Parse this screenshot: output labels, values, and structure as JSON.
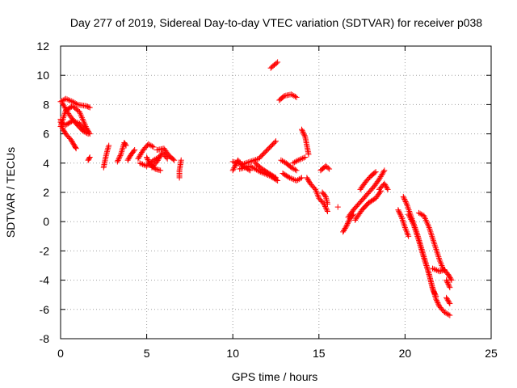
{
  "chart_data": {
    "type": "scatter",
    "title": "Day 277 of 2019, Sidereal Day-to-day VTEC variation (SDTVAR) for receiver p038",
    "xlabel": "GPS time / hours",
    "ylabel": "SDTVAR / TECUs",
    "xlim": [
      0,
      25
    ],
    "ylim": [
      -8,
      12
    ],
    "xticks": [
      0,
      5,
      10,
      15,
      20,
      25
    ],
    "yticks": [
      -8,
      -6,
      -4,
      -2,
      0,
      2,
      4,
      6,
      8,
      10,
      12
    ],
    "grid": true,
    "marker": "+",
    "marker_color": "#ff0000",
    "series": [
      {
        "name": "SDTVAR",
        "tracks": [
          [
            [
              0.0,
              6.5
            ],
            [
              0.3,
              7.6
            ],
            [
              0.7,
              7.9
            ],
            [
              1.1,
              7.5
            ],
            [
              1.5,
              6.4
            ],
            [
              1.7,
              6.0
            ]
          ],
          [
            [
              0.0,
              8.2
            ],
            [
              0.3,
              8.4
            ],
            [
              0.7,
              8.2
            ],
            [
              1.0,
              8.0
            ],
            [
              1.5,
              7.9
            ],
            [
              1.7,
              7.8
            ]
          ],
          [
            [
              0.0,
              7.0
            ],
            [
              0.1,
              6.4
            ],
            [
              0.3,
              6.0
            ],
            [
              0.6,
              5.6
            ],
            [
              0.8,
              5.2
            ],
            [
              0.9,
              5.0
            ]
          ],
          [
            [
              0.0,
              6.8
            ],
            [
              0.3,
              6.6
            ],
            [
              0.7,
              6.9
            ],
            [
              1.1,
              6.7
            ],
            [
              1.4,
              6.3
            ]
          ],
          [
            [
              0.1,
              8.1
            ],
            [
              0.5,
              7.3
            ],
            [
              0.9,
              6.7
            ],
            [
              1.3,
              6.2
            ],
            [
              1.6,
              6.0
            ]
          ],
          [
            [
              1.6,
              4.2
            ],
            [
              1.7,
              4.4
            ]
          ],
          [
            [
              2.5,
              3.7
            ],
            [
              2.6,
              4.3
            ],
            [
              2.7,
              4.8
            ],
            [
              2.8,
              5.2
            ]
          ],
          [
            [
              3.3,
              4.1
            ],
            [
              3.5,
              4.6
            ],
            [
              3.7,
              5.4
            ],
            [
              3.8,
              5.2
            ]
          ],
          [
            [
              3.9,
              4.2
            ],
            [
              4.1,
              4.6
            ],
            [
              4.3,
              4.9
            ]
          ],
          [
            [
              4.5,
              4.3
            ],
            [
              4.8,
              4.9
            ],
            [
              5.1,
              5.3
            ],
            [
              5.4,
              5.1
            ]
          ],
          [
            [
              4.6,
              4.0
            ],
            [
              5.0,
              3.8
            ],
            [
              5.4,
              4.2
            ],
            [
              5.7,
              4.4
            ]
          ],
          [
            [
              5.3,
              3.7
            ],
            [
              5.6,
              4.1
            ],
            [
              5.9,
              4.7
            ],
            [
              6.2,
              4.3
            ]
          ],
          [
            [
              5.6,
              4.9
            ],
            [
              6.0,
              5.0
            ],
            [
              6.3,
              4.5
            ],
            [
              6.6,
              4.2
            ]
          ],
          [
            [
              5.0,
              4.4
            ],
            [
              5.2,
              3.9
            ],
            [
              5.5,
              3.6
            ],
            [
              5.8,
              3.5
            ]
          ],
          [
            [
              6.9,
              3.0
            ],
            [
              6.9,
              3.5
            ],
            [
              7.0,
              4.2
            ]
          ],
          [
            [
              10.0,
              3.5
            ],
            [
              10.3,
              4.2
            ],
            [
              10.6,
              3.8
            ],
            [
              11.0,
              3.5
            ]
          ],
          [
            [
              10.0,
              4.1
            ],
            [
              10.5,
              3.9
            ],
            [
              11.0,
              4.1
            ],
            [
              11.5,
              4.3
            ],
            [
              12.0,
              4.9
            ],
            [
              12.5,
              5.5
            ]
          ],
          [
            [
              10.4,
              3.6
            ],
            [
              11.0,
              3.8
            ],
            [
              11.6,
              3.4
            ],
            [
              12.2,
              3.1
            ],
            [
              12.6,
              2.8
            ]
          ],
          [
            [
              11.3,
              4.0
            ],
            [
              11.7,
              3.6
            ],
            [
              12.1,
              3.3
            ],
            [
              12.5,
              3.0
            ]
          ],
          [
            [
              12.2,
              10.5
            ],
            [
              12.4,
              10.7
            ],
            [
              12.6,
              10.9
            ]
          ],
          [
            [
              12.7,
              8.3
            ],
            [
              13.0,
              8.6
            ],
            [
              13.4,
              8.7
            ],
            [
              13.7,
              8.5
            ]
          ],
          [
            [
              12.8,
              4.2
            ],
            [
              13.1,
              4.0
            ],
            [
              13.4,
              3.7
            ],
            [
              13.7,
              3.5
            ]
          ],
          [
            [
              13.5,
              4.0
            ],
            [
              13.8,
              4.2
            ],
            [
              14.2,
              4.4
            ]
          ],
          [
            [
              12.9,
              3.3
            ],
            [
              13.3,
              3.0
            ],
            [
              13.7,
              2.8
            ],
            [
              14.0,
              3.0
            ]
          ],
          [
            [
              14.0,
              6.3
            ],
            [
              14.2,
              5.8
            ],
            [
              14.3,
              5.2
            ],
            [
              14.4,
              4.6
            ]
          ],
          [
            [
              14.3,
              3.0
            ],
            [
              14.5,
              2.6
            ],
            [
              14.8,
              2.2
            ],
            [
              15.0,
              1.6
            ],
            [
              15.3,
              1.2
            ],
            [
              15.5,
              0.7
            ]
          ],
          [
            [
              15.1,
              3.5
            ],
            [
              15.4,
              3.8
            ],
            [
              15.6,
              3.6
            ]
          ],
          [
            [
              15.2,
              2.0
            ],
            [
              15.4,
              1.7
            ],
            [
              15.5,
              1.2
            ]
          ],
          [
            [
              16.1,
              1.0
            ]
          ],
          [
            [
              16.4,
              -0.7
            ],
            [
              16.6,
              -0.3
            ],
            [
              16.8,
              0.2
            ],
            [
              17.0,
              0.5
            ]
          ],
          [
            [
              16.7,
              0.3
            ],
            [
              17.0,
              0.8
            ],
            [
              17.3,
              1.2
            ],
            [
              17.6,
              1.6
            ],
            [
              17.9,
              2.0
            ],
            [
              18.2,
              2.4
            ],
            [
              18.5,
              2.9
            ],
            [
              18.8,
              3.5
            ]
          ],
          [
            [
              17.1,
              0.1
            ],
            [
              17.5,
              0.8
            ],
            [
              17.9,
              1.3
            ],
            [
              18.3,
              1.6
            ],
            [
              18.6,
              2.1
            ]
          ],
          [
            [
              17.4,
              2.2
            ],
            [
              17.7,
              2.7
            ],
            [
              18.0,
              3.1
            ],
            [
              18.3,
              3.4
            ]
          ],
          [
            [
              18.5,
              2.2
            ],
            [
              18.8,
              2.6
            ],
            [
              19.0,
              2.2
            ]
          ],
          [
            [
              19.6,
              0.8
            ],
            [
              19.8,
              0.3
            ],
            [
              20.0,
              -0.4
            ],
            [
              20.2,
              -1.0
            ]
          ],
          [
            [
              19.9,
              1.7
            ],
            [
              20.1,
              1.2
            ],
            [
              20.4,
              0.2
            ],
            [
              20.7,
              -0.8
            ],
            [
              21.0,
              -2.0
            ],
            [
              21.3,
              -3.2
            ],
            [
              21.6,
              -4.5
            ],
            [
              21.8,
              -5.3
            ],
            [
              22.0,
              -5.8
            ],
            [
              22.3,
              -6.2
            ],
            [
              22.6,
              -6.4
            ]
          ],
          [
            [
              20.2,
              0.5
            ],
            [
              20.5,
              -0.2
            ],
            [
              20.8,
              -1.3
            ],
            [
              21.1,
              -2.5
            ],
            [
              21.4,
              -3.6
            ],
            [
              21.6,
              -4.6
            ],
            [
              21.8,
              -5.1
            ]
          ],
          [
            [
              20.8,
              0.6
            ],
            [
              21.1,
              0.4
            ],
            [
              21.4,
              -0.4
            ],
            [
              21.7,
              -1.5
            ],
            [
              22.0,
              -2.6
            ],
            [
              22.2,
              -3.2
            ],
            [
              22.5,
              -3.6
            ],
            [
              22.7,
              -4.0
            ]
          ],
          [
            [
              21.6,
              -3.2
            ],
            [
              22.0,
              -3.4
            ],
            [
              22.3,
              -3.3
            ]
          ],
          [
            [
              22.4,
              -5.2
            ],
            [
              22.6,
              -5.6
            ]
          ],
          [
            [
              22.4,
              -4.0
            ],
            [
              22.6,
              -4.5
            ]
          ]
        ]
      }
    ]
  }
}
